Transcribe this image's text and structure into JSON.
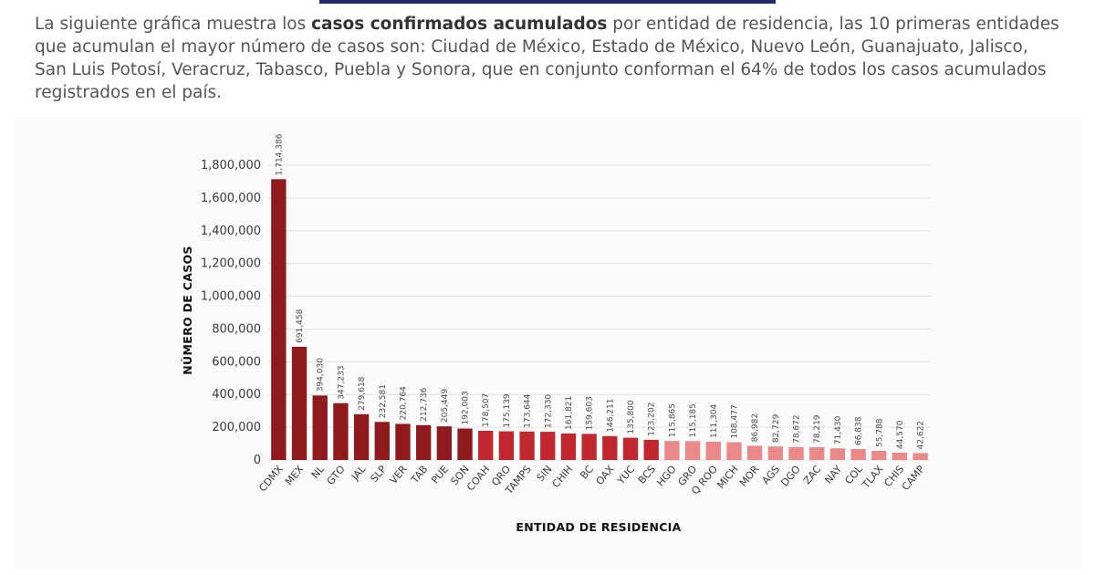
{
  "intro": {
    "part1": "La siguiente gráfica muestra los ",
    "bold": "casos confirmados acumulados",
    "part2": " por entidad de residencia, las 10 primeras entidades que acumulan el mayor número de casos son: Ciudad de México, Estado de México, Nuevo León, Guanajuato, Jalisco, San Luis Potosí, Veracruz, Tabasco, Puebla y Sonora, que en conjunto conforman el 64% de todos los casos acumulados registrados en el país."
  },
  "chart_data": {
    "type": "bar",
    "xlabel": "ENTIDAD DE RESIDENCIA",
    "ylabel": "NÚMERO DE CASOS",
    "ylim": [
      0,
      1800000
    ],
    "yticks": [
      0,
      200000,
      400000,
      600000,
      800000,
      1000000,
      1200000,
      1400000,
      1600000,
      1800000
    ],
    "ytick_labels": [
      "0",
      "200,000",
      "400,000",
      "600,000",
      "800,000",
      "1,000,000",
      "1,200,000",
      "1,400,000",
      "1,600,000",
      "1,800,000"
    ],
    "grid": true,
    "categories": [
      "CDMX",
      "MEX",
      "NL",
      "GTO",
      "JAL",
      "SLP",
      "VER",
      "TAB",
      "PUE",
      "SON",
      "COAH",
      "QRO",
      "TAMPS",
      "SIN",
      "CHIH",
      "BC",
      "OAX",
      "YUC",
      "BCS",
      "HGO",
      "GRO",
      "Q ROO",
      "MICH",
      "MOR",
      "AGS",
      "DGO",
      "ZAC",
      "NAY",
      "COL",
      "TLAX",
      "CHIS",
      "CAMP"
    ],
    "values": [
      1714386,
      691458,
      394030,
      347233,
      279618,
      232581,
      220764,
      212736,
      205449,
      192003,
      178507,
      175139,
      173644,
      172330,
      161821,
      159603,
      146211,
      135800,
      123202,
      115865,
      115185,
      111304,
      108477,
      86982,
      82729,
      78672,
      78219,
      71430,
      66838,
      55788,
      44570,
      42622
    ],
    "value_labels": [
      "1,714,386",
      "691,458",
      "394,030",
      "347,233",
      "279,618",
      "232,581",
      "220,764",
      "212,736",
      "205,449",
      "192,003",
      "178,507",
      "175,139",
      "173,644",
      "172,330",
      "161,821",
      "159,603",
      "146,211",
      "135,800",
      "123,202",
      "115,865",
      "115,185",
      "111,304",
      "108,477",
      "86,982",
      "82,729",
      "78,672",
      "78,219",
      "71,430",
      "66,838",
      "55,788",
      "44,570",
      "42,622"
    ],
    "colors": [
      "#8e1a1d",
      "#8e1a1d",
      "#8e1a1d",
      "#8e1a1d",
      "#8e1a1d",
      "#8e1a1d",
      "#8e1a1d",
      "#8e1a1d",
      "#8e1a1d",
      "#8e1a1d",
      "#c0282d",
      "#c0282d",
      "#c0282d",
      "#c0282d",
      "#c0282d",
      "#c0282d",
      "#c0282d",
      "#c0282d",
      "#c0282d",
      "#e98989",
      "#e98989",
      "#e98989",
      "#e98989",
      "#e98989",
      "#e98989",
      "#e98989",
      "#e98989",
      "#e98989",
      "#e98989",
      "#e98989",
      "#e98989",
      "#e98989"
    ]
  }
}
